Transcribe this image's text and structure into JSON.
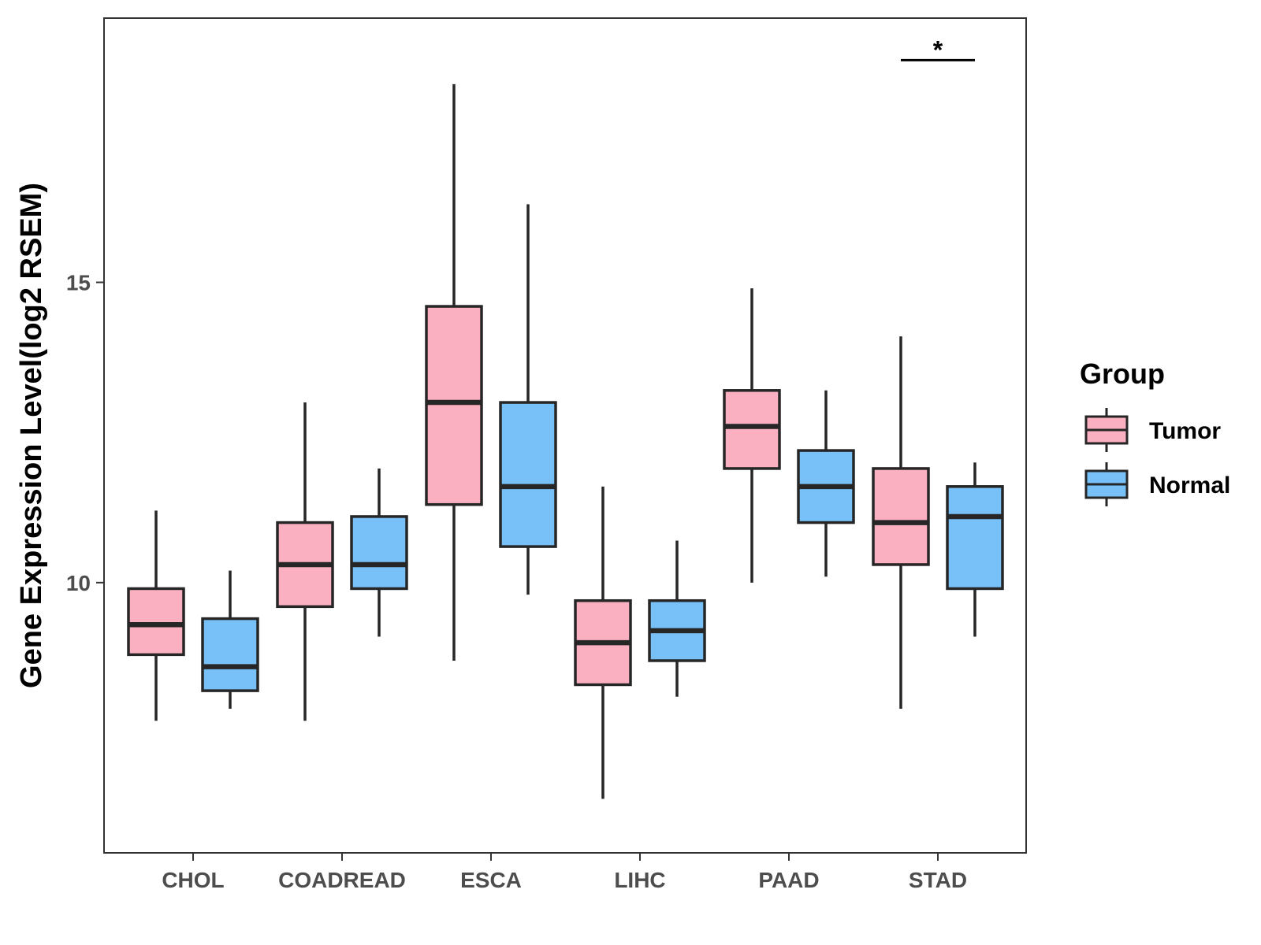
{
  "chart_data": {
    "type": "boxplot",
    "title": "",
    "xlabel": "",
    "ylabel": "Gene Expression Level(log2 RSEM)",
    "ylim": [
      5.5,
      19.4
    ],
    "yticks": [
      10,
      15
    ],
    "grid": false,
    "categories": [
      "CHOL",
      "COADREAD",
      "ESCA",
      "LIHC",
      "PAAD",
      "STAD"
    ],
    "legend": {
      "title": "Group",
      "position": "right",
      "entries": [
        "Tumor",
        "Normal"
      ]
    },
    "colors": {
      "Tumor": "#fbb0c1",
      "Normal": "#78c1f8",
      "outline": "#262626"
    },
    "series": [
      {
        "name": "Tumor",
        "boxes": [
          {
            "category": "CHOL",
            "whisker_low": 7.7,
            "q1": 8.8,
            "median": 9.3,
            "q3": 9.9,
            "whisker_high": 11.2
          },
          {
            "category": "COADREAD",
            "whisker_low": 7.7,
            "q1": 9.6,
            "median": 10.3,
            "q3": 11.0,
            "whisker_high": 13.0
          },
          {
            "category": "ESCA",
            "whisker_low": 8.7,
            "q1": 11.3,
            "median": 13.0,
            "q3": 14.6,
            "whisker_high": 18.3
          },
          {
            "category": "LIHC",
            "whisker_low": 6.4,
            "q1": 8.3,
            "median": 9.0,
            "q3": 9.7,
            "whisker_high": 11.6
          },
          {
            "category": "PAAD",
            "whisker_low": 10.0,
            "q1": 11.9,
            "median": 12.6,
            "q3": 13.2,
            "whisker_high": 14.9
          },
          {
            "category": "STAD",
            "whisker_low": 7.9,
            "q1": 10.3,
            "median": 11.0,
            "q3": 11.9,
            "whisker_high": 14.1
          }
        ]
      },
      {
        "name": "Normal",
        "boxes": [
          {
            "category": "CHOL",
            "whisker_low": 7.9,
            "q1": 8.2,
            "median": 8.6,
            "q3": 9.4,
            "whisker_high": 10.2
          },
          {
            "category": "COADREAD",
            "whisker_low": 9.1,
            "q1": 9.9,
            "median": 10.3,
            "q3": 11.1,
            "whisker_high": 11.9
          },
          {
            "category": "ESCA",
            "whisker_low": 9.8,
            "q1": 10.6,
            "median": 11.6,
            "q3": 13.0,
            "whisker_high": 16.3
          },
          {
            "category": "LIHC",
            "whisker_low": 8.1,
            "q1": 8.7,
            "median": 9.2,
            "q3": 9.7,
            "whisker_high": 10.7
          },
          {
            "category": "PAAD",
            "whisker_low": 10.1,
            "q1": 11.0,
            "median": 11.6,
            "q3": 12.2,
            "whisker_high": 13.2
          },
          {
            "category": "STAD",
            "whisker_low": 9.1,
            "q1": 9.9,
            "median": 11.1,
            "q3": 11.6,
            "whisker_high": 12.0
          }
        ]
      }
    ],
    "annotations": [
      {
        "category": "STAD",
        "label": "*",
        "y": 18.7
      }
    ]
  }
}
